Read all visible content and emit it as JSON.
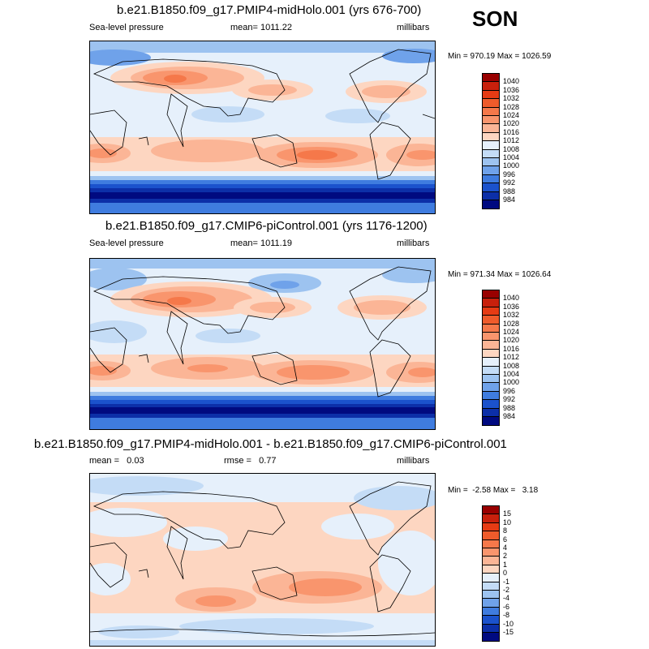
{
  "season": "SON",
  "panels": [
    {
      "title": "b.e21.B1850.f09_g17.PMIP4-midHolo.001 (yrs 676-700)",
      "left_label": "Sea-level pressure",
      "center_label": "mean= 1011.22",
      "right_label": "millibars",
      "minmax": "Min = 970.19 Max = 1026.59",
      "colorbar": {
        "labels": [
          "1040",
          "1036",
          "1032",
          "1028",
          "1024",
          "1020",
          "1016",
          "1012",
          "1008",
          "1004",
          "1000",
          "996",
          "992",
          "988",
          "984"
        ],
        "colors": [
          "#990000",
          "#c8200c",
          "#e63b14",
          "#ef5b2b",
          "#f5784a",
          "#f9956d",
          "#fbb596",
          "#fdd6c1",
          "#e6f0fb",
          "#c4dcf6",
          "#9dc3f0",
          "#6fa2ea",
          "#3f7cdf",
          "#1b52cc",
          "#0c2fa8",
          "#000a80"
        ]
      }
    },
    {
      "title": "b.e21.B1850.f09_g17.CMIP6-piControl.001 (yrs 1176-1200)",
      "left_label": "Sea-level pressure",
      "center_label": "mean= 1011.19",
      "right_label": "millibars",
      "minmax": "Min = 971.34 Max = 1026.64",
      "colorbar": {
        "labels": [
          "1040",
          "1036",
          "1032",
          "1028",
          "1024",
          "1020",
          "1016",
          "1012",
          "1008",
          "1004",
          "1000",
          "996",
          "992",
          "988",
          "984"
        ],
        "colors": [
          "#990000",
          "#c8200c",
          "#e63b14",
          "#ef5b2b",
          "#f5784a",
          "#f9956d",
          "#fbb596",
          "#fdd6c1",
          "#e6f0fb",
          "#c4dcf6",
          "#9dc3f0",
          "#6fa2ea",
          "#3f7cdf",
          "#1b52cc",
          "#0c2fa8",
          "#000a80"
        ]
      }
    },
    {
      "title": "b.e21.B1850.f09_g17.PMIP4-midHolo.001 - b.e21.B1850.f09_g17.CMIP6-piControl.001",
      "left_label": "mean =   0.03",
      "center_label": "rmse =   0.77",
      "right_label": "millibars",
      "minmax": "Min =  -2.58 Max =   3.18",
      "colorbar": {
        "labels": [
          "15",
          "10",
          "8",
          "6",
          "4",
          "2",
          "1",
          "0",
          "-1",
          "-2",
          "-4",
          "-6",
          "-8",
          "-10",
          "-15"
        ],
        "colors": [
          "#990000",
          "#c8200c",
          "#e63b14",
          "#ef5b2b",
          "#f5784a",
          "#f9956d",
          "#fbb596",
          "#fdd6c1",
          "#e6f0fb",
          "#c4dcf6",
          "#9dc3f0",
          "#6fa2ea",
          "#3f7cdf",
          "#1b52cc",
          "#0c2fa8",
          "#000a80"
        ]
      }
    }
  ]
}
